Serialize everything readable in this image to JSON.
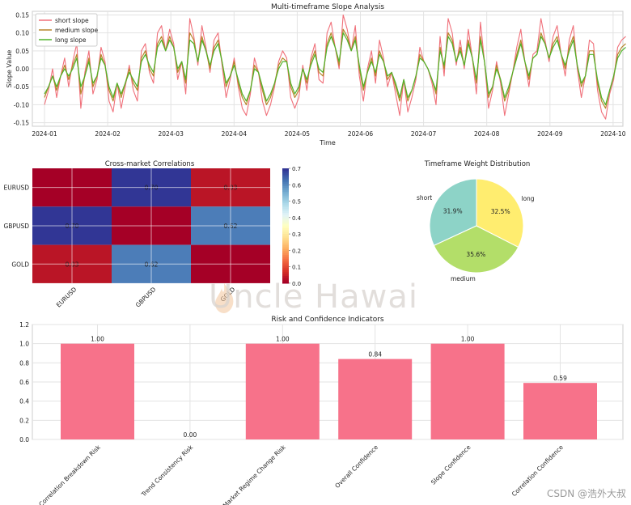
{
  "chart_data": [
    {
      "type": "line",
      "title": "Multi-timeframe Slope Analysis",
      "xlabel": "Time",
      "ylabel": "Slope Value",
      "ylim": [
        -0.16,
        0.16
      ],
      "yticks": [
        -0.15,
        -0.1,
        -0.05,
        0.0,
        0.05,
        0.1,
        0.15
      ],
      "ytick_labels": [
        "-0.15",
        "-0.10",
        "-0.05",
        "0.00",
        "0.05",
        "0.10",
        "0.15"
      ],
      "x_range_months": [
        0,
        9.2
      ],
      "xtick_labels": [
        "2024-01",
        "2024-02",
        "2024-03",
        "2024-04",
        "2024-05",
        "2024-06",
        "2024-07",
        "2024-08",
        "2024-09",
        "2024-10"
      ],
      "legend_position": "top-left",
      "series": [
        {
          "name": "short slope",
          "color": "#f0707a",
          "values": [
            -0.1,
            -0.06,
            0.0,
            -0.08,
            -0.02,
            0.03,
            -0.05,
            0.02,
            0.07,
            -0.11,
            -0.01,
            0.05,
            -0.07,
            -0.03,
            0.06,
            0.02,
            -0.09,
            -0.12,
            -0.04,
            -0.11,
            -0.05,
            0.01,
            -0.06,
            -0.09,
            0.05,
            0.07,
            -0.01,
            -0.04,
            0.1,
            0.12,
            0.05,
            0.11,
            0.07,
            -0.03,
            0.02,
            -0.07,
            0.14,
            0.09,
            0.01,
            0.12,
            0.06,
            -0.01,
            0.08,
            0.1,
            0.01,
            -0.08,
            -0.03,
            0.03,
            -0.05,
            -0.11,
            -0.13,
            -0.07,
            0.03,
            -0.01,
            -0.09,
            -0.13,
            -0.1,
            -0.05,
            0.02,
            0.05,
            0.03,
            -0.08,
            -0.11,
            -0.08,
            0.01,
            -0.06,
            0.03,
            0.07,
            -0.03,
            -0.04,
            0.1,
            0.13,
            0.06,
            0.0,
            0.15,
            0.11,
            0.05,
            0.12,
            -0.02,
            -0.09,
            0.0,
            0.05,
            -0.04,
            0.08,
            0.03,
            -0.05,
            -0.01,
            -0.07,
            -0.13,
            -0.03,
            -0.12,
            -0.08,
            -0.03,
            0.06,
            0.02,
            0.0,
            -0.04,
            -0.1,
            0.09,
            -0.02,
            0.14,
            0.1,
            0.01,
            0.08,
            0.0,
            0.11,
            0.03,
            -0.07,
            0.13,
            0.02,
            -0.11,
            -0.06,
            0.02,
            -0.04,
            -0.13,
            -0.07,
            -0.01,
            0.06,
            0.11,
            0.02,
            -0.05,
            0.04,
            0.05,
            0.14,
            0.08,
            0.02,
            0.09,
            0.12,
            0.04,
            -0.02,
            0.08,
            0.12,
            0.0,
            -0.08,
            -0.02,
            0.08,
            0.07,
            -0.06,
            -0.12,
            -0.14,
            -0.07,
            -0.03,
            0.06,
            0.08,
            0.09
          ]
        },
        {
          "name": "medium slope",
          "color": "#b7862b",
          "values": [
            -0.08,
            -0.05,
            -0.02,
            -0.06,
            -0.02,
            0.01,
            -0.03,
            0.01,
            0.04,
            -0.07,
            -0.02,
            0.03,
            -0.05,
            -0.02,
            0.04,
            0.01,
            -0.06,
            -0.09,
            -0.04,
            -0.08,
            -0.04,
            0.0,
            -0.04,
            -0.06,
            0.03,
            0.05,
            0.0,
            -0.02,
            0.07,
            0.09,
            0.05,
            0.09,
            0.06,
            -0.01,
            0.02,
            -0.04,
            0.1,
            0.08,
            0.02,
            0.09,
            0.05,
            0.0,
            0.06,
            0.08,
            0.02,
            -0.05,
            -0.02,
            0.02,
            -0.04,
            -0.08,
            -0.1,
            -0.06,
            0.01,
            -0.01,
            -0.06,
            -0.1,
            -0.08,
            -0.04,
            0.01,
            0.03,
            0.02,
            -0.05,
            -0.08,
            -0.06,
            0.0,
            -0.04,
            0.02,
            0.05,
            -0.01,
            -0.02,
            0.07,
            0.1,
            0.06,
            0.01,
            0.11,
            0.09,
            0.05,
            0.09,
            0.0,
            -0.06,
            -0.01,
            0.03,
            -0.02,
            0.05,
            0.02,
            -0.03,
            -0.01,
            -0.05,
            -0.09,
            -0.03,
            -0.09,
            -0.06,
            -0.02,
            0.04,
            0.02,
            0.0,
            -0.03,
            -0.07,
            0.06,
            0.0,
            0.1,
            0.08,
            0.02,
            0.06,
            0.01,
            0.08,
            0.03,
            -0.04,
            0.09,
            0.02,
            -0.08,
            -0.05,
            0.01,
            -0.03,
            -0.09,
            -0.06,
            -0.01,
            0.04,
            0.08,
            0.02,
            -0.03,
            0.03,
            0.04,
            0.1,
            0.07,
            0.03,
            0.07,
            0.09,
            0.04,
            0.0,
            0.06,
            0.09,
            0.01,
            -0.05,
            -0.02,
            0.05,
            0.05,
            -0.04,
            -0.09,
            -0.11,
            -0.06,
            -0.02,
            0.04,
            0.06,
            0.07
          ]
        },
        {
          "name": "long slope",
          "color": "#4fb32a",
          "values": [
            -0.07,
            -0.05,
            -0.02,
            -0.05,
            -0.02,
            0.0,
            -0.02,
            0.0,
            0.03,
            -0.05,
            -0.02,
            0.02,
            -0.04,
            -0.02,
            0.03,
            0.01,
            -0.05,
            -0.08,
            -0.04,
            -0.07,
            -0.04,
            -0.01,
            -0.03,
            -0.05,
            0.02,
            0.04,
            0.01,
            -0.01,
            0.06,
            0.08,
            0.05,
            0.08,
            0.06,
            0.0,
            0.02,
            -0.03,
            0.08,
            0.07,
            0.02,
            0.08,
            0.05,
            0.01,
            0.05,
            0.07,
            0.02,
            -0.04,
            -0.02,
            0.01,
            -0.03,
            -0.07,
            -0.09,
            -0.06,
            0.0,
            -0.01,
            -0.05,
            -0.09,
            -0.07,
            -0.04,
            0.0,
            0.02,
            0.02,
            -0.04,
            -0.07,
            -0.05,
            0.0,
            -0.03,
            0.01,
            0.04,
            0.0,
            -0.01,
            0.06,
            0.09,
            0.06,
            0.02,
            0.1,
            0.08,
            0.05,
            0.08,
            0.01,
            -0.05,
            -0.01,
            0.02,
            -0.01,
            0.04,
            0.02,
            -0.02,
            -0.01,
            -0.04,
            -0.08,
            -0.03,
            -0.08,
            -0.06,
            -0.02,
            0.03,
            0.02,
            0.0,
            -0.03,
            -0.06,
            0.05,
            0.01,
            0.09,
            0.07,
            0.02,
            0.05,
            0.01,
            0.07,
            0.03,
            -0.03,
            0.08,
            0.02,
            -0.07,
            -0.05,
            0.0,
            -0.03,
            -0.08,
            -0.05,
            -0.01,
            0.03,
            0.07,
            0.02,
            -0.02,
            0.03,
            0.04,
            0.09,
            0.07,
            0.03,
            0.06,
            0.08,
            0.04,
            0.01,
            0.05,
            0.08,
            0.01,
            -0.04,
            -0.02,
            0.04,
            0.04,
            -0.03,
            -0.08,
            -0.1,
            -0.06,
            -0.02,
            0.03,
            0.05,
            0.06
          ]
        }
      ]
    },
    {
      "type": "heatmap",
      "title": "Cross-market Correlations",
      "rows": [
        "EURUSD",
        "GBPUSD",
        "GOLD"
      ],
      "cols": [
        "EURUSD",
        "GBPUSD",
        "GOLD"
      ],
      "values": [
        [
          0.0,
          0.7,
          0.03
        ],
        [
          0.7,
          0.0,
          0.62
        ],
        [
          0.03,
          0.62,
          0.0
        ]
      ],
      "labels": [
        [
          "",
          "0.70",
          "0.03"
        ],
        [
          "0.70",
          "",
          "0.62"
        ],
        [
          "0.03",
          "0.62",
          ""
        ]
      ],
      "colorbar_range": [
        0.0,
        0.7
      ],
      "colorbar_ticks": [
        "0.0",
        "0.1",
        "0.2",
        "0.3",
        "0.4",
        "0.5",
        "0.6",
        "0.7"
      ],
      "colormap": "RdYlBu"
    },
    {
      "type": "pie",
      "title": "Timeframe Weight Distribution",
      "slices": [
        {
          "label": "short",
          "value": 31.9,
          "pct": "31.9%",
          "color": "#8dd3c7"
        },
        {
          "label": "medium",
          "value": 35.6,
          "pct": "35.6%",
          "color": "#b3de69"
        },
        {
          "label": "long",
          "value": 32.5,
          "pct": "32.5%",
          "color": "#ffed6f"
        }
      ]
    },
    {
      "type": "bar",
      "title": "Risk and Confidence Indicators",
      "categories": [
        "Correlation Breakdown Risk",
        "Trend Consistency Risk",
        "Market Regime Change Risk",
        "Overall Confidence",
        "Slope Confidence",
        "Correlation Confidence"
      ],
      "values": [
        1.0,
        0.0,
        1.0,
        0.84,
        1.0,
        0.59
      ],
      "value_labels": [
        "1.00",
        "0.00",
        "1.00",
        "0.84",
        "1.00",
        "0.59"
      ],
      "ylim": [
        0,
        1.2
      ],
      "yticks": [
        "0.0",
        "0.2",
        "0.4",
        "0.6",
        "0.8",
        "1.0",
        "1.2"
      ],
      "color": "#f7728a"
    }
  ],
  "watermark": {
    "text": "Uncle Hawai"
  },
  "credit": {
    "text": "CSDN @浩外大叔"
  }
}
